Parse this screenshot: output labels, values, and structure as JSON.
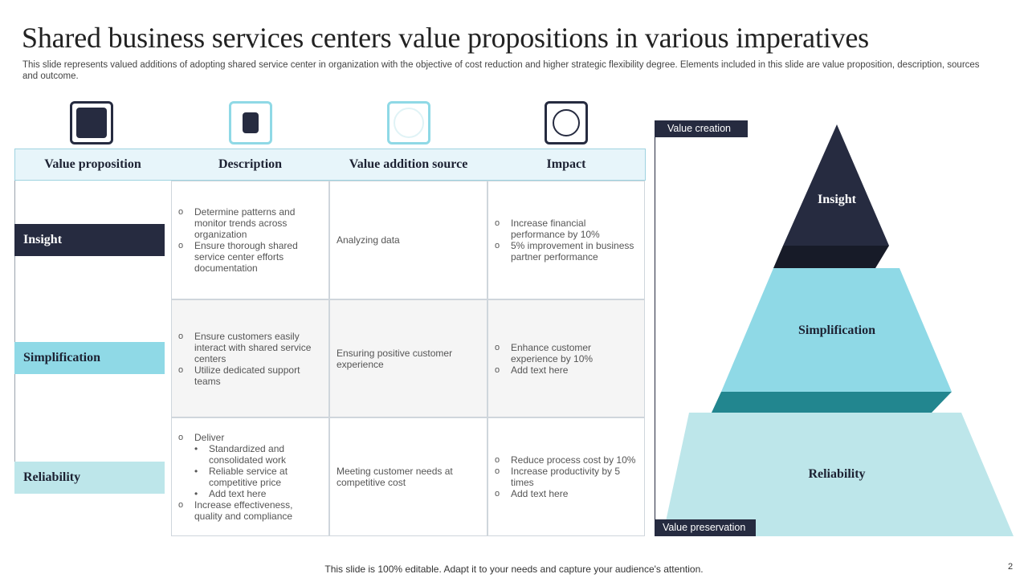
{
  "title": "Shared business services centers value propositions in various imperatives",
  "subtitle": "This slide represents valued additions of adopting shared service center in organization with the objective of cost reduction and higher strategic flexibility degree. Elements included in this slide are value proposition, description, sources and outcome.",
  "table": {
    "headers": [
      "Value proposition",
      "Description",
      "Value addition source",
      "Impact"
    ],
    "rows": [
      {
        "label": "Insight",
        "description": [
          "Determine patterns and monitor trends across organization",
          "Ensure thorough shared service center efforts documentation"
        ],
        "source": "Analyzing data",
        "impact": [
          "Increase financial performance by 10%",
          "5% improvement in business partner performance"
        ]
      },
      {
        "label": "Simplification",
        "description": [
          "Ensure customers easily interact with shared service centers",
          "Utilize dedicated support teams"
        ],
        "source": "Ensuring positive customer experience",
        "impact": [
          "Enhance customer experience by 10%",
          "Add text here"
        ]
      },
      {
        "label": "Reliability",
        "description": [
          {
            "text": "Deliver",
            "items": [
              "Standardized and consolidated work",
              "Reliable service at competitive price",
              "Add text here"
            ]
          },
          "Increase effectiveness, quality and compliance"
        ],
        "source": "Meeting customer needs at competitive cost",
        "impact": [
          "Reduce process cost by 10%",
          "Increase productivity by 5 times",
          "Add text here"
        ]
      }
    ]
  },
  "pyramid": {
    "top_label": "Value creation",
    "bottom_label": "Value preservation",
    "levels": [
      "Insight",
      "Simplification",
      "Reliability"
    ]
  },
  "footer": "This slide is 100% editable. Adapt it to your needs and capture your audience's attention.",
  "page_number": "2"
}
